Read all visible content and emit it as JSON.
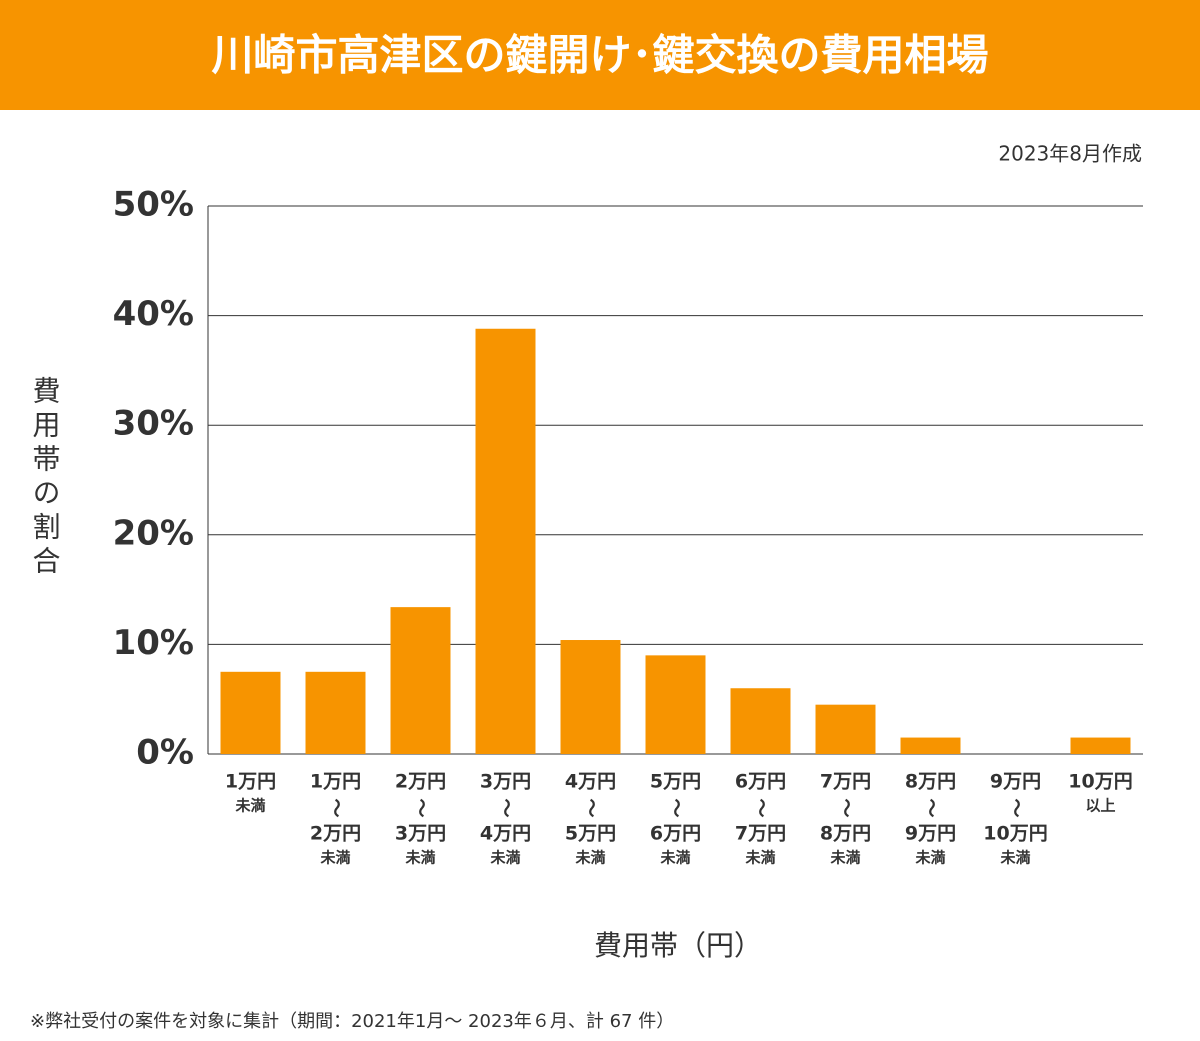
{
  "chart_data": {
    "type": "bar",
    "title": "川崎市高津区の鍵開け･鍵交換の費用相場",
    "subtitle": "2023年8月作成",
    "x_label": "費用帯（円）",
    "y_label": "費用帯の割合",
    "footnote": "※弊社受付の案件を対象に集計（期間：2021年1月～ 2023年６月、計 67 件）",
    "categories": [
      [
        "1万円",
        "未満"
      ],
      [
        "1万円",
        "〜",
        "2万円",
        "未満"
      ],
      [
        "2万円",
        "〜",
        "3万円",
        "未満"
      ],
      [
        "3万円",
        "〜",
        "4万円",
        "未満"
      ],
      [
        "4万円",
        "〜",
        "5万円",
        "未満"
      ],
      [
        "5万円",
        "〜",
        "6万円",
        "未満"
      ],
      [
        "6万円",
        "〜",
        "7万円",
        "未満"
      ],
      [
        "7万円",
        "〜",
        "8万円",
        "未満"
      ],
      [
        "8万円",
        "〜",
        "9万円",
        "未満"
      ],
      [
        "9万円",
        "〜",
        "10万円",
        "未満"
      ],
      [
        "10万円",
        "以上"
      ]
    ],
    "values": [
      7.5,
      7.5,
      13.4,
      38.8,
      10.4,
      9.0,
      6.0,
      4.5,
      1.5,
      0,
      1.5
    ],
    "color": "#f79400",
    "ylim": [
      0,
      50
    ],
    "yticks": [
      {
        "value": 0,
        "label": "0%"
      },
      {
        "value": 10,
        "label": "10%"
      },
      {
        "value": 20,
        "label": "20%"
      },
      {
        "value": 30,
        "label": "30%"
      },
      {
        "value": 40,
        "label": "40%"
      },
      {
        "value": 50,
        "label": "50%"
      }
    ],
    "grid": true
  }
}
